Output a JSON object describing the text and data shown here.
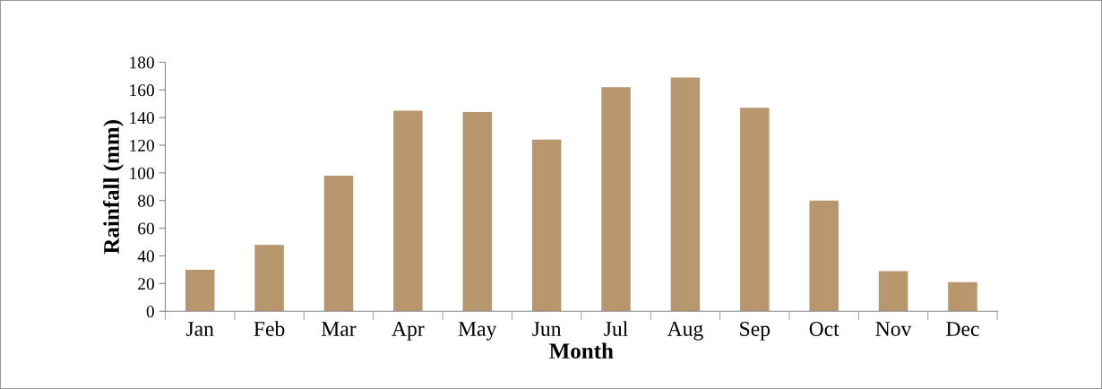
{
  "chart_data": {
    "type": "bar",
    "xlabel": "Month",
    "ylabel": "Rainfall (mm)",
    "categories": [
      "Jan",
      "Feb",
      "Mar",
      "Apr",
      "May",
      "Jun",
      "Jul",
      "Aug",
      "Sep",
      "Oct",
      "Nov",
      "Dec"
    ],
    "values": [
      30,
      48,
      98,
      145,
      144,
      124,
      162,
      169,
      147,
      80,
      29,
      21
    ],
    "color": "#b8966e",
    "ylim": [
      0,
      180
    ],
    "yticks": [
      0,
      20,
      40,
      60,
      80,
      100,
      120,
      140,
      160,
      180
    ],
    "grid": false,
    "legend": false
  }
}
